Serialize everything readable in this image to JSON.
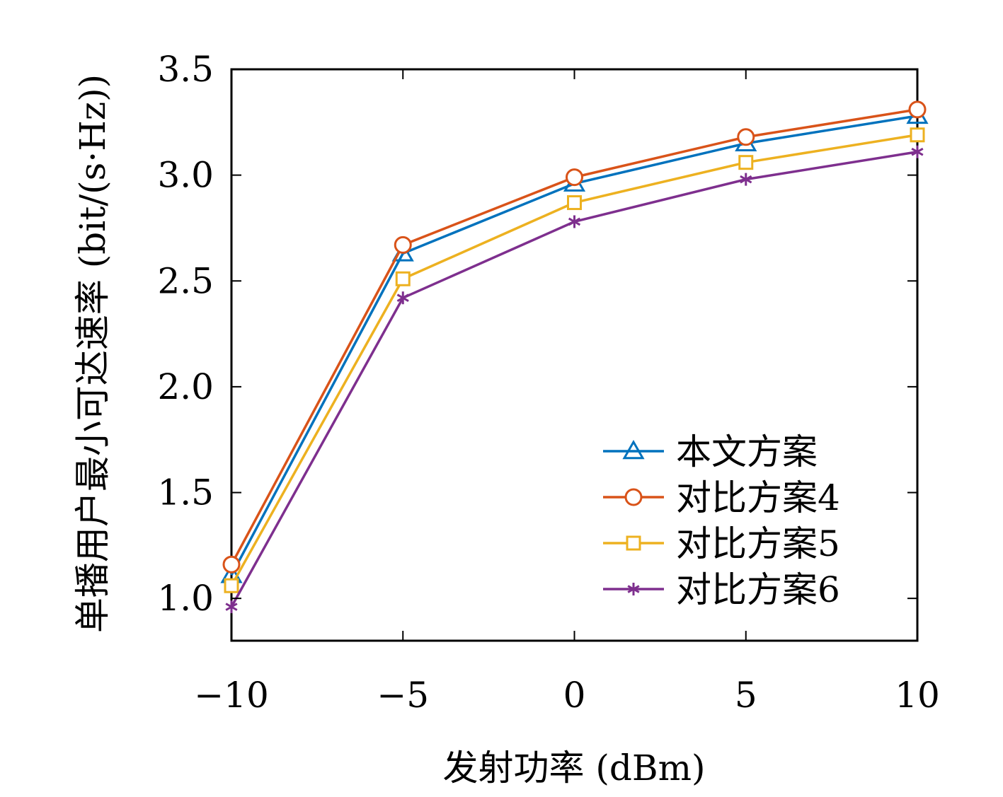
{
  "chart_data": {
    "type": "line",
    "title": "",
    "xlabel": "发射功率 (dBm)",
    "ylabel": "单播用户最小可达速率 (bit/(s·Hz))",
    "x": [
      -10,
      -5,
      0,
      5,
      10
    ],
    "x_tick_labels": [
      "−10",
      "−5",
      "0",
      "5",
      "10"
    ],
    "xlim": [
      -10,
      10
    ],
    "y_ticks": [
      1.0,
      1.5,
      2.0,
      2.5,
      3.0,
      3.5
    ],
    "y_tick_labels": [
      "1.0",
      "1.5",
      "2.0",
      "2.5",
      "3.0",
      "3.5"
    ],
    "ylim": [
      0.8,
      3.5
    ],
    "grid": false,
    "legend_position": "lower-right",
    "series": [
      {
        "name": "本文方案",
        "values": [
          1.11,
          2.63,
          2.96,
          3.15,
          3.28
        ],
        "color": "#0072BD",
        "marker": "triangle"
      },
      {
        "name": "对比方案4",
        "values": [
          1.16,
          2.67,
          2.99,
          3.18,
          3.31
        ],
        "color": "#D95319",
        "marker": "circle"
      },
      {
        "name": "对比方案5",
        "values": [
          1.06,
          2.51,
          2.87,
          3.06,
          3.19
        ],
        "color": "#EDB120",
        "marker": "square"
      },
      {
        "name": "对比方案6",
        "values": [
          0.96,
          2.42,
          2.78,
          2.98,
          3.11
        ],
        "color": "#7E2F8E",
        "marker": "asterisk"
      }
    ]
  }
}
